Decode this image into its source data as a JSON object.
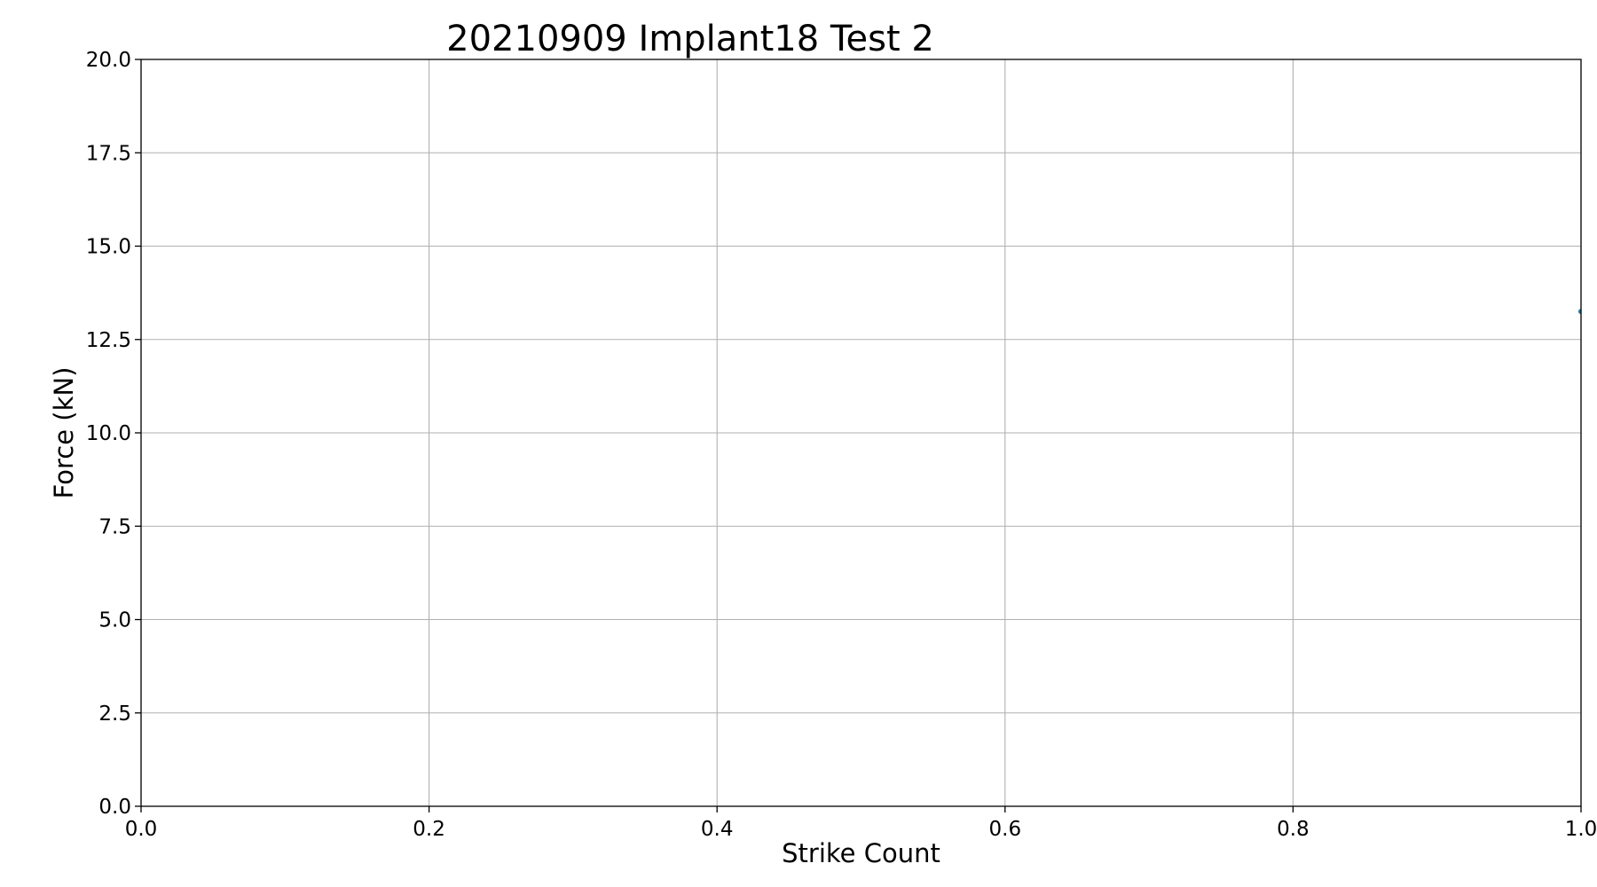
{
  "chart_data": {
    "type": "line",
    "title": "20210909 Implant18 Test 2",
    "xlabel": "Strike Count",
    "ylabel": "Force (kN)",
    "xlim": [
      0.0,
      1.0
    ],
    "ylim": [
      0.0,
      20.0
    ],
    "xticks": [
      "0.0",
      "0.2",
      "0.4",
      "0.6",
      "0.8",
      "1.0"
    ],
    "yticks": [
      "0.0",
      "2.5",
      "5.0",
      "7.5",
      "10.0",
      "12.5",
      "15.0",
      "17.5",
      "20.0"
    ],
    "grid": true,
    "series": [
      {
        "color": "#1f77b4",
        "x": [
          1.0
        ],
        "y": [
          13.25
        ]
      }
    ]
  }
}
